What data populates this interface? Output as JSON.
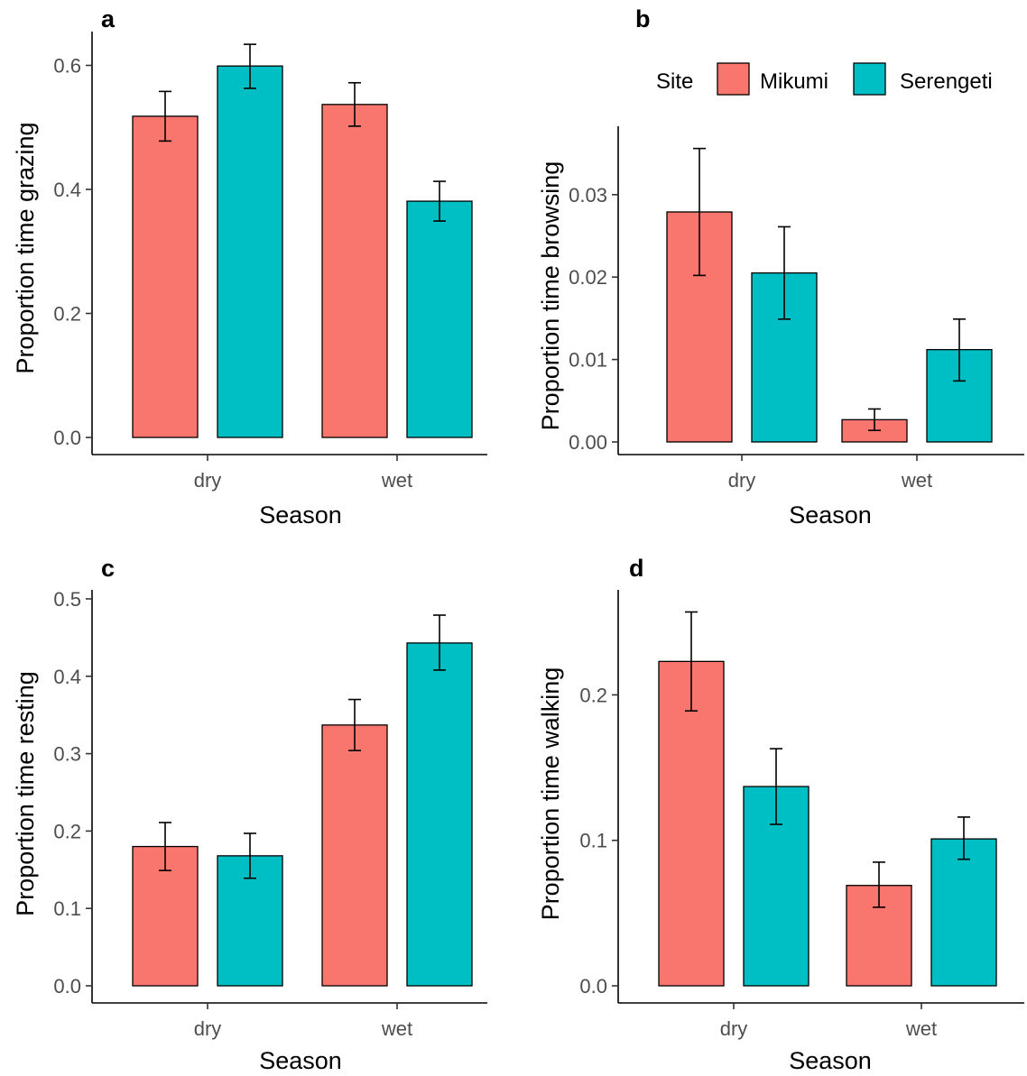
{
  "legend": {
    "title": "Site",
    "items": [
      {
        "label": "Mikumi",
        "color": "#F8766D"
      },
      {
        "label": "Serengeti",
        "color": "#00BFC4"
      }
    ]
  },
  "chart_data": [
    {
      "type": "bar",
      "panel": "a",
      "xlabel": "Season",
      "ylabel": "Proportion time grazing",
      "categories": [
        "dry",
        "wet"
      ],
      "yticks": [
        "0.0",
        "0.2",
        "0.4",
        "0.6"
      ],
      "ylim": [
        0,
        0.64
      ],
      "series": [
        {
          "name": "Mikumi",
          "values": [
            0.518,
            0.537
          ],
          "err_low": [
            0.478,
            0.502
          ],
          "err_high": [
            0.558,
            0.572
          ]
        },
        {
          "name": "Serengeti",
          "values": [
            0.599,
            0.381
          ],
          "err_low": [
            0.563,
            0.349
          ],
          "err_high": [
            0.634,
            0.413
          ]
        }
      ]
    },
    {
      "type": "bar",
      "panel": "b",
      "xlabel": "Season",
      "ylabel": "Proportion time browsing",
      "categories": [
        "dry",
        "wet"
      ],
      "yticks": [
        "0.00",
        "0.01",
        "0.02",
        "0.03"
      ],
      "ylim": [
        0,
        0.0372
      ],
      "series": [
        {
          "name": "Mikumi",
          "values": [
            0.0279,
            0.0027
          ],
          "err_low": [
            0.0202,
            0.0014
          ],
          "err_high": [
            0.0356,
            0.004
          ]
        },
        {
          "name": "Serengeti",
          "values": [
            0.0205,
            0.0112
          ],
          "err_low": [
            0.0149,
            0.0074
          ],
          "err_high": [
            0.0261,
            0.0149
          ]
        }
      ]
    },
    {
      "type": "bar",
      "panel": "c",
      "xlabel": "Season",
      "ylabel": "Proportion time resting",
      "categories": [
        "dry",
        "wet"
      ],
      "yticks": [
        "0.0",
        "0.1",
        "0.2",
        "0.3",
        "0.4",
        "0.5"
      ],
      "ylim": [
        0,
        0.5
      ],
      "series": [
        {
          "name": "Mikumi",
          "values": [
            0.18,
            0.337
          ],
          "err_low": [
            0.149,
            0.304
          ],
          "err_high": [
            0.211,
            0.37
          ]
        },
        {
          "name": "Serengeti",
          "values": [
            0.168,
            0.443
          ],
          "err_low": [
            0.139,
            0.408
          ],
          "err_high": [
            0.197,
            0.479
          ]
        }
      ]
    },
    {
      "type": "bar",
      "panel": "d",
      "xlabel": "Season",
      "ylabel": "Proportion time walking",
      "categories": [
        "dry",
        "wet"
      ],
      "yticks": [
        "0.0",
        "0.1",
        "0.2"
      ],
      "ylim": [
        0,
        0.266
      ],
      "series": [
        {
          "name": "Mikumi",
          "values": [
            0.223,
            0.069
          ],
          "err_low": [
            0.189,
            0.054
          ],
          "err_high": [
            0.257,
            0.085
          ]
        },
        {
          "name": "Serengeti",
          "values": [
            0.137,
            0.101
          ],
          "err_low": [
            0.111,
            0.087
          ],
          "err_high": [
            0.163,
            0.116
          ]
        }
      ]
    }
  ]
}
